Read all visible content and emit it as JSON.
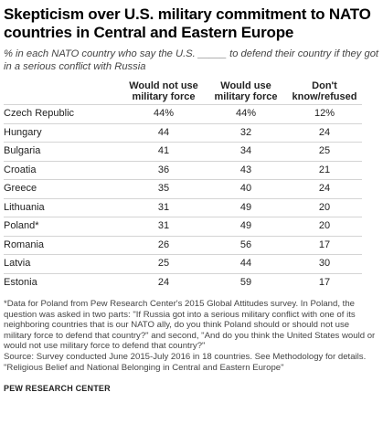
{
  "title": "Skepticism over U.S. military commitment to NATO countries in Central and Eastern Europe",
  "subtitle": "% in each NATO country who say the U.S. _____ to defend their country if they got in a serious conflict with Russia",
  "columns": [
    "Would not use military force",
    "Would use military force",
    "Don't know/refused"
  ],
  "chart_data": {
    "type": "table",
    "title": "Skepticism over U.S. military commitment to NATO countries in Central and Eastern Europe",
    "columns": [
      "Would not use military force",
      "Would use military force",
      "Don't know/refused"
    ],
    "rows": [
      {
        "country": "Czech Republic",
        "values": [
          "44%",
          "44%",
          "12%"
        ]
      },
      {
        "country": "Hungary",
        "values": [
          "44",
          "32",
          "24"
        ]
      },
      {
        "country": "Bulgaria",
        "values": [
          "41",
          "34",
          "25"
        ]
      },
      {
        "country": "Croatia",
        "values": [
          "36",
          "43",
          "21"
        ]
      },
      {
        "country": "Greece",
        "values": [
          "35",
          "40",
          "24"
        ]
      },
      {
        "country": "Lithuania",
        "values": [
          "31",
          "49",
          "20"
        ]
      },
      {
        "country": "Poland*",
        "values": [
          "31",
          "49",
          "20"
        ]
      },
      {
        "country": "Romania",
        "values": [
          "26",
          "56",
          "17"
        ]
      },
      {
        "country": "Latvia",
        "values": [
          "25",
          "44",
          "30"
        ]
      },
      {
        "country": "Estonia",
        "values": [
          "24",
          "59",
          "17"
        ]
      }
    ]
  },
  "notes": {
    "footnote": "*Data for Poland from Pew Research Center's 2015 Global Attitudes survey. In Poland, the question was asked in two parts: \"If Russia got into a serious military conflict with one of its neighboring countries that is our NATO ally, do you think Poland should or should not use military force to defend that country?\" and second, \"And do you think the United States would or would not use military force to defend that country?\"",
    "source": "Source: Survey conducted June 2015-July 2016 in 18 countries. See Methodology for details.",
    "report": "\"Religious Belief and National Belonging in Central and Eastern Europe\"",
    "org": "PEW RESEARCH CENTER"
  }
}
